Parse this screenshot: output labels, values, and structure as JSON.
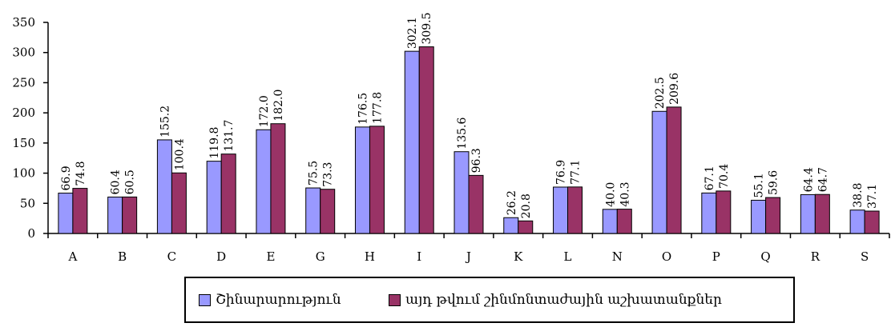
{
  "chart_data": {
    "type": "bar",
    "categories": [
      "A",
      "B",
      "C",
      "D",
      "E",
      "G",
      "H",
      "I",
      "J",
      "K",
      "L",
      "N",
      "O",
      "P",
      "Q",
      "R",
      "S"
    ],
    "series": [
      {
        "name": "Շինարարություն",
        "color": "#9999FF",
        "values": [
          66.9,
          60.4,
          155.2,
          119.8,
          172.0,
          75.5,
          176.5,
          302.1,
          135.6,
          26.2,
          76.9,
          40.0,
          202.5,
          67.1,
          55.1,
          64.4,
          38.8
        ]
      },
      {
        "name": "այդ թվում շինմոնտաժային աշխատանքներ",
        "color": "#993366",
        "values": [
          74.8,
          60.5,
          100.4,
          131.7,
          182.0,
          73.3,
          177.8,
          309.5,
          96.3,
          20.8,
          77.1,
          40.3,
          209.6,
          70.4,
          59.6,
          64.7,
          37.1
        ]
      }
    ],
    "ylim": [
      0,
      350
    ],
    "yticks": [
      0,
      50,
      100,
      150,
      200,
      250,
      300,
      350
    ],
    "grid": false,
    "legend_position": "bottom"
  }
}
